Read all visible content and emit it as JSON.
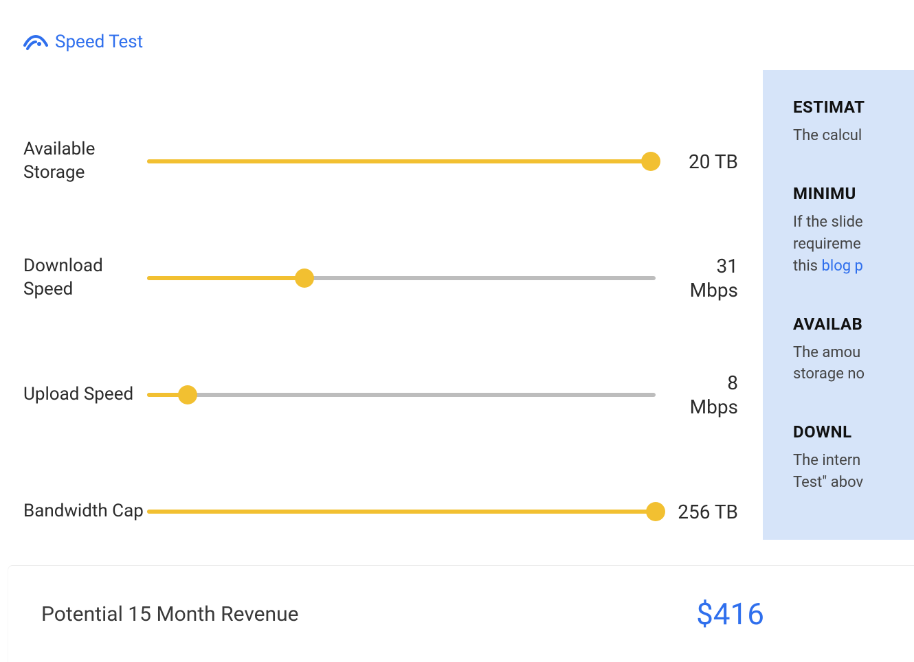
{
  "colors": {
    "accent_blue": "#2f6fed",
    "slider_fill": "#f2c031",
    "slider_thumb": "#f2c031",
    "slider_track": "#bdbdbd",
    "panel_bg": "#d6e4f9",
    "text_primary": "#2b2b2b",
    "text_heading": "#111111"
  },
  "speed_test": {
    "label": "Speed Test"
  },
  "sliders": [
    {
      "key": "storage",
      "label": "Available Storage",
      "value_text": "20 TB",
      "value_num": "20",
      "value_unit": "TB",
      "fill_pct": 99,
      "single_line": true
    },
    {
      "key": "download",
      "label": "Download Speed",
      "value_text": "31 Mbps",
      "value_num": "31",
      "value_unit": "Mbps",
      "fill_pct": 31,
      "single_line": false
    },
    {
      "key": "upload",
      "label": "Upload Speed",
      "value_text": "8 Mbps",
      "value_num": "8",
      "value_unit": "Mbps",
      "fill_pct": 8,
      "single_line": false
    },
    {
      "key": "bandwidth",
      "label": "Bandwidth Cap",
      "value_text": "256 TB",
      "value_num": "256",
      "value_unit": "TB",
      "fill_pct": 100,
      "single_line": true
    }
  ],
  "info_panel": {
    "sections": [
      {
        "heading": "ESTIMAT",
        "body_pre": "The calcul",
        "link": "",
        "body_post": ""
      },
      {
        "heading": "MINIMU",
        "body_pre": "If the slide\nrequireme\nthis ",
        "link": "blog p",
        "body_post": ""
      },
      {
        "heading": "AVAILAB",
        "body_pre": "The amou\nstorage no",
        "link": "",
        "body_post": ""
      },
      {
        "heading": "DOWNL",
        "body_pre": "The intern\nTest\" abov",
        "link": "",
        "body_post": ""
      }
    ]
  },
  "revenue": {
    "label": "Potential 15 Month Revenue",
    "amount": "$416"
  }
}
